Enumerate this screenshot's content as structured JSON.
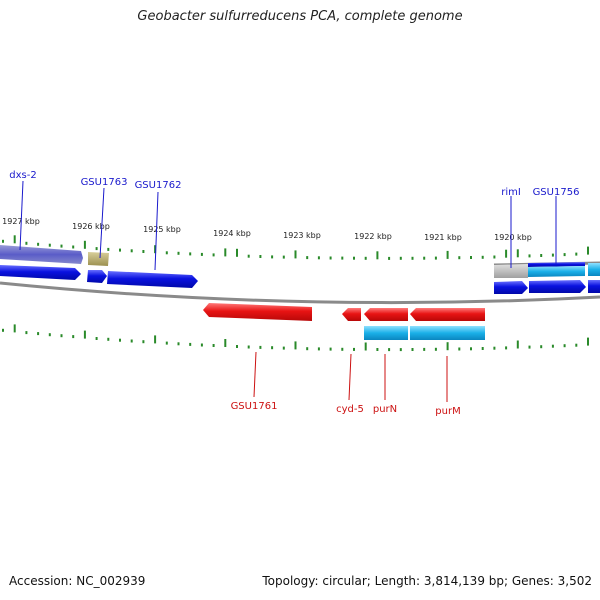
{
  "title": "Geobacter sulfurreducens PCA, complete genome",
  "footer": {
    "accession": "Accession: NC_002939",
    "summary": "Topology: circular; Length: 3,814,139 bp; Genes: 3,502"
  },
  "colors": {
    "forward_gene": "#0a12e0",
    "reverse_gene": "#e81414",
    "cyan_gene": "#1ab0e8",
    "olive_gene": "#b3a862",
    "grey_gene": "#b8b8b8",
    "backbone": "#8a8a8a",
    "tick": "#2a8a2a",
    "forward_label": "#1a1acc",
    "reverse_label": "#cc1111"
  },
  "scale": {
    "unit": "kbp",
    "labels": [
      "1927 kbp",
      "1926 kbp",
      "1925 kbp",
      "1924 kbp",
      "1923 kbp",
      "1922 kbp",
      "1921 kbp",
      "1920 kbp"
    ]
  },
  "genes": {
    "forward": [
      {
        "name": "dxs-2"
      },
      {
        "name": "GSU1763"
      },
      {
        "name": "GSU1762"
      },
      {
        "name": "rimI"
      },
      {
        "name": "GSU1756"
      }
    ],
    "reverse": [
      {
        "name": "GSU1761"
      },
      {
        "name": "cyd-5"
      },
      {
        "name": "purN"
      },
      {
        "name": "purM"
      }
    ]
  }
}
